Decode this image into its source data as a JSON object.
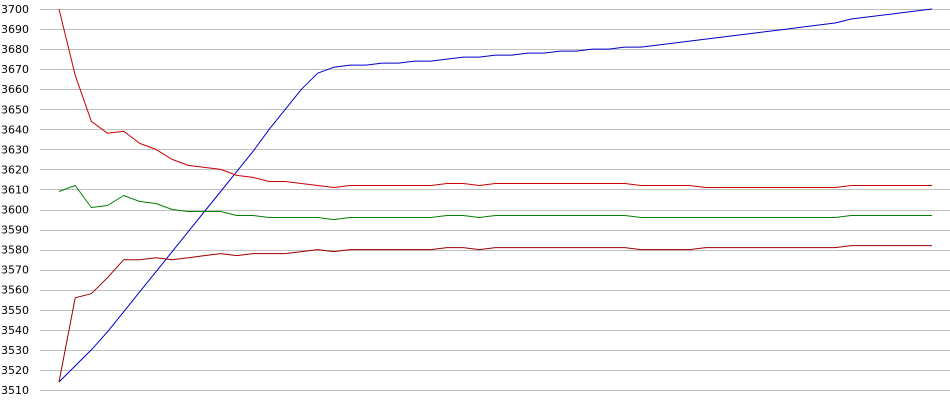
{
  "chart_data": {
    "type": "line",
    "title": "",
    "xlabel": "",
    "ylabel": "",
    "ylim": [
      3510,
      3700
    ],
    "grid": true,
    "y_ticks": [
      3510,
      3520,
      3530,
      3540,
      3550,
      3560,
      3570,
      3580,
      3590,
      3600,
      3610,
      3620,
      3630,
      3640,
      3650,
      3660,
      3670,
      3680,
      3690,
      3700
    ],
    "x": [
      0,
      1,
      2,
      3,
      4,
      5,
      6,
      7,
      8,
      9,
      10,
      11,
      12,
      13,
      14,
      15,
      16,
      17,
      18,
      19,
      20,
      21,
      22,
      23,
      24,
      25,
      26,
      27,
      28,
      29,
      30,
      31,
      32,
      33,
      34,
      35,
      36,
      37,
      38,
      39,
      40,
      41,
      42,
      43,
      44,
      45,
      46,
      47,
      48,
      49,
      50,
      51,
      52,
      53,
      54
    ],
    "series": [
      {
        "color": "#0000cc",
        "values": [
          3514,
          3522,
          3530,
          3539,
          3549,
          3559,
          3569,
          3579,
          3589,
          3599,
          3609,
          3619,
          3629,
          3640,
          3650,
          3660,
          3668,
          3671,
          3672,
          3672,
          3673,
          3673,
          3674,
          3674,
          3675,
          3676,
          3676,
          3677,
          3677,
          3678,
          3678,
          3679,
          3679,
          3680,
          3680,
          3681,
          3681,
          3682,
          3683,
          3684,
          3685,
          3686,
          3687,
          3688,
          3689,
          3690,
          3691,
          3692,
          3693,
          3695,
          3696,
          3697,
          3698,
          3699,
          3700
        ]
      },
      {
        "color": "#cc0000",
        "values": [
          3700,
          3667,
          3644,
          3638,
          3639,
          3633,
          3630,
          3625,
          3622,
          3621,
          3620,
          3617,
          3616,
          3614,
          3614,
          3613,
          3612,
          3611,
          3612,
          3612,
          3612,
          3612,
          3612,
          3612,
          3613,
          3613,
          3612,
          3613,
          3613,
          3613,
          3613,
          3613,
          3613,
          3613,
          3613,
          3613,
          3612,
          3612,
          3612,
          3612,
          3611,
          3611,
          3611,
          3611,
          3611,
          3611,
          3611,
          3611,
          3611,
          3612,
          3612,
          3612,
          3612,
          3612,
          3612
        ]
      },
      {
        "color": "#008000",
        "values": [
          3609,
          3612,
          3601,
          3602,
          3607,
          3604,
          3603,
          3600,
          3599,
          3599,
          3599,
          3597,
          3597,
          3596,
          3596,
          3596,
          3596,
          3595,
          3596,
          3596,
          3596,
          3596,
          3596,
          3596,
          3597,
          3597,
          3596,
          3597,
          3597,
          3597,
          3597,
          3597,
          3597,
          3597,
          3597,
          3597,
          3596,
          3596,
          3596,
          3596,
          3596,
          3596,
          3596,
          3596,
          3596,
          3596,
          3596,
          3596,
          3596,
          3597,
          3597,
          3597,
          3597,
          3597,
          3597
        ]
      },
      {
        "color": "#990000",
        "values": [
          3514,
          3556,
          3558,
          3566,
          3575,
          3575,
          3576,
          3575,
          3576,
          3577,
          3578,
          3577,
          3578,
          3578,
          3578,
          3579,
          3580,
          3579,
          3580,
          3580,
          3580,
          3580,
          3580,
          3580,
          3581,
          3581,
          3580,
          3581,
          3581,
          3581,
          3581,
          3581,
          3581,
          3581,
          3581,
          3581,
          3580,
          3580,
          3580,
          3580,
          3581,
          3581,
          3581,
          3581,
          3581,
          3581,
          3581,
          3581,
          3581,
          3582,
          3582,
          3582,
          3582,
          3582,
          3582
        ]
      }
    ]
  }
}
